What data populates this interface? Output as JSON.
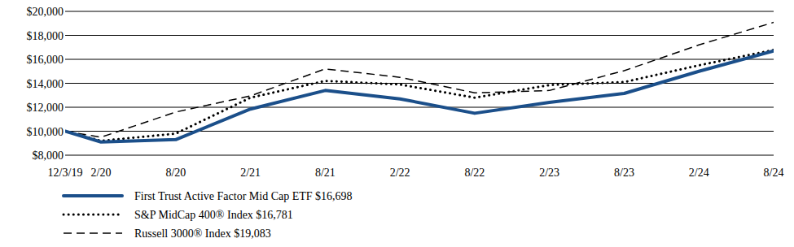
{
  "chart_data": {
    "type": "line",
    "x": [
      2019.92,
      2020.16,
      2020.66,
      2021.16,
      2021.66,
      2022.16,
      2022.66,
      2023.16,
      2023.66,
      2024.16,
      2024.66
    ],
    "xlim": [
      2019.92,
      2024.66
    ],
    "xticks": [
      {
        "value": 2019.92,
        "label": "12/3/19"
      },
      {
        "value": 2020.16,
        "label": "2/20"
      },
      {
        "value": 2020.66,
        "label": "8/20"
      },
      {
        "value": 2021.16,
        "label": "2/21"
      },
      {
        "value": 2021.66,
        "label": "8/21"
      },
      {
        "value": 2022.16,
        "label": "2/22"
      },
      {
        "value": 2022.66,
        "label": "8/22"
      },
      {
        "value": 2023.16,
        "label": "2/23"
      },
      {
        "value": 2023.66,
        "label": "8/23"
      },
      {
        "value": 2024.16,
        "label": "2/24"
      },
      {
        "value": 2024.66,
        "label": "8/24"
      }
    ],
    "ylim": [
      8000,
      20000
    ],
    "yticks": [
      {
        "value": 8000,
        "label": "$8,000"
      },
      {
        "value": 10000,
        "label": "$10,000"
      },
      {
        "value": 12000,
        "label": "$12,000"
      },
      {
        "value": 14000,
        "label": "$14,000"
      },
      {
        "value": 16000,
        "label": "$16,000"
      },
      {
        "value": 18000,
        "label": "$18,000"
      },
      {
        "value": 20000,
        "label": "$20,000"
      }
    ],
    "grid": true,
    "legend": "bottom",
    "series": [
      {
        "name": "First Trust Active Factor Mid Cap ETF $16,698",
        "color": "#1b4f8a",
        "line_style": "solid",
        "values": [
          10000,
          9100,
          9300,
          11850,
          13400,
          12700,
          11500,
          12400,
          13150,
          15000,
          16698
        ]
      },
      {
        "name": "S&P MidCap 400® Index $16,781",
        "color": "#000000",
        "line_style": "dotted",
        "values": [
          10000,
          9200,
          9800,
          12800,
          14200,
          13900,
          12800,
          13850,
          14100,
          15500,
          16781
        ]
      },
      {
        "name": "Russell 3000® Index $19,083",
        "color": "#000000",
        "line_style": "dashed",
        "values": [
          10000,
          9500,
          11600,
          12950,
          15200,
          14500,
          13200,
          13400,
          15050,
          17200,
          19083
        ]
      }
    ]
  }
}
